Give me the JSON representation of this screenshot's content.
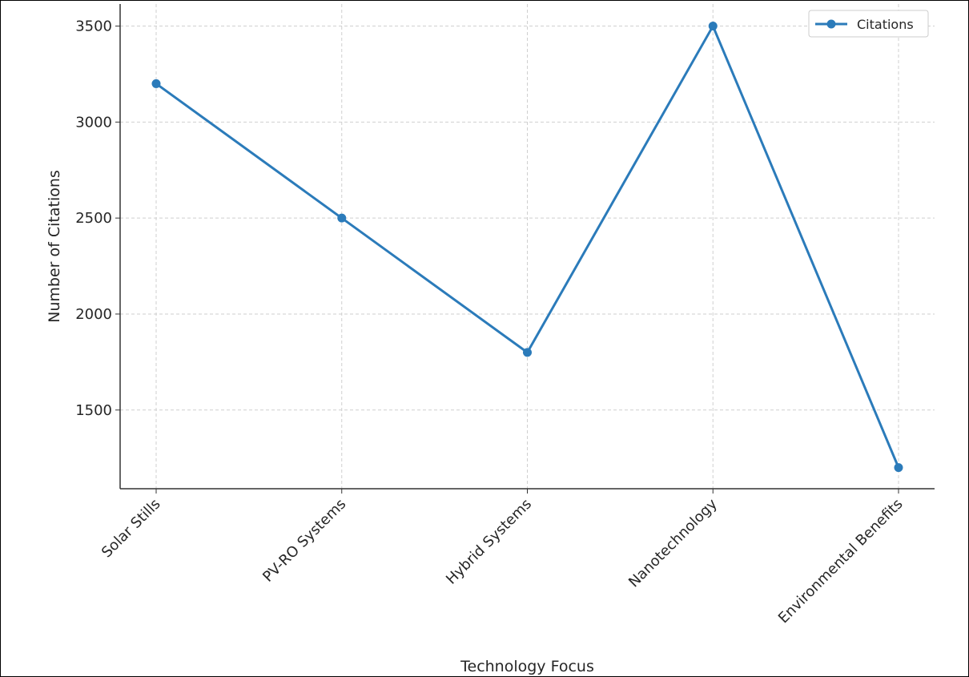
{
  "chart_data": {
    "type": "line",
    "title": "",
    "xlabel": "Technology Focus",
    "ylabel": "Number of Citations",
    "categories": [
      "Solar Stills",
      "PV-RO Systems",
      "Hybrid Systems",
      "Nanotechnology",
      "Environmental Benefits"
    ],
    "series": [
      {
        "name": "Citations",
        "values": [
          3200,
          2500,
          1800,
          3500,
          1200
        ],
        "color": "#2b7bba"
      }
    ],
    "ylim": [
      1090,
      3615
    ],
    "yticks": [
      1500,
      2000,
      2500,
      3000,
      3500
    ],
    "grid": true,
    "legend": "top-right"
  }
}
